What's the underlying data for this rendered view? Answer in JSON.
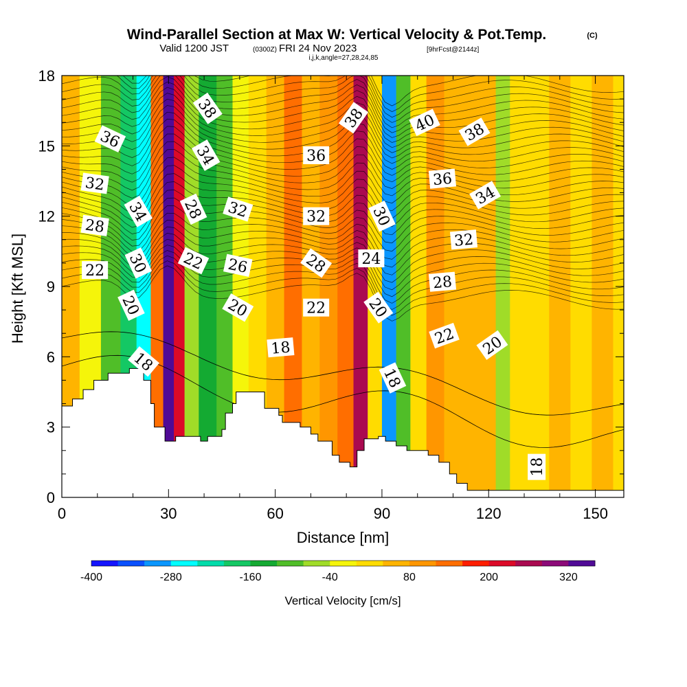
{
  "title": {
    "main": "Wind-Parallel Section at Max W: Vertical Velocity & Pot.Temp.",
    "copyright": "(C)",
    "valid_prefix": "Valid 1200 JST",
    "valid_utc": "(0300Z)",
    "valid_date": "FRI 24 Nov 2023",
    "forecast": "[9hrFcst@2144z]",
    "indices": "i,j,k,angle=27,28,24,85"
  },
  "chart_data": {
    "type": "heatmap",
    "xlabel": "Distance [nm]",
    "ylabel": "Height [Kft MSL]",
    "xlim": [
      0,
      158
    ],
    "ylim": [
      0,
      18
    ],
    "x_ticks": [
      "0",
      "30",
      "60",
      "90",
      "120",
      "150"
    ],
    "y_ticks": [
      "0",
      "3",
      "6",
      "9",
      "12",
      "15",
      "18"
    ],
    "colorbar": {
      "title": "Vertical Velocity [cm/s]",
      "tick_labels": [
        "-400",
        "-280",
        "-160",
        "-40",
        "80",
        "200",
        "320"
      ],
      "levels": [
        -400,
        -360,
        -320,
        -280,
        -240,
        -200,
        -160,
        -120,
        -80,
        -40,
        0,
        40,
        80,
        120,
        160,
        200,
        240,
        280,
        320,
        360
      ],
      "colors": [
        "#1414ff",
        "#0a50ff",
        "#0a96ff",
        "#00ffff",
        "#00dcaa",
        "#14c864",
        "#14aa32",
        "#50be28",
        "#a0dc28",
        "#f5f50a",
        "#ffdc00",
        "#ffb400",
        "#ff9600",
        "#ff6e00",
        "#ff1e00",
        "#dc0a28",
        "#aa0a50",
        "#8c0a78",
        "#500a96"
      ]
    },
    "velocity_columns": [
      {
        "x": 2,
        "w": 50
      },
      {
        "x": 8,
        "w": -40
      },
      {
        "x": 14,
        "w": -90
      },
      {
        "x": 19,
        "w": -200
      },
      {
        "x": 23,
        "w": -270
      },
      {
        "x": 27,
        "w": 120
      },
      {
        "x": 30,
        "w": 340
      },
      {
        "x": 33,
        "w": 200
      },
      {
        "x": 36,
        "w": -80
      },
      {
        "x": 41,
        "w": -140
      },
      {
        "x": 46,
        "w": -90
      },
      {
        "x": 50,
        "w": -40
      },
      {
        "x": 55,
        "w": 20
      },
      {
        "x": 60,
        "w": 60
      },
      {
        "x": 65,
        "w": 120
      },
      {
        "x": 70,
        "w": 40
      },
      {
        "x": 75,
        "w": 90
      },
      {
        "x": 80,
        "w": 150
      },
      {
        "x": 84,
        "w": 240
      },
      {
        "x": 88,
        "w": 30
      },
      {
        "x": 92,
        "w": -310
      },
      {
        "x": 96,
        "w": -120
      },
      {
        "x": 100,
        "w": 30
      },
      {
        "x": 105,
        "w": 80
      },
      {
        "x": 110,
        "w": 60
      },
      {
        "x": 115,
        "w": 40
      },
      {
        "x": 120,
        "w": 60
      },
      {
        "x": 124,
        "w": -60
      },
      {
        "x": 128,
        "w": 30
      },
      {
        "x": 134,
        "w": 20
      },
      {
        "x": 140,
        "w": 50
      },
      {
        "x": 146,
        "w": 30
      },
      {
        "x": 152,
        "w": 60
      },
      {
        "x": 158,
        "w": 20
      }
    ],
    "terrain": [
      {
        "x": 0,
        "h": 3.9
      },
      {
        "x": 3,
        "h": 4.2
      },
      {
        "x": 6,
        "h": 4.6
      },
      {
        "x": 9,
        "h": 5.0
      },
      {
        "x": 13,
        "h": 5.3
      },
      {
        "x": 19,
        "h": 5.5
      },
      {
        "x": 23,
        "h": 5.0
      },
      {
        "x": 25,
        "h": 4.0
      },
      {
        "x": 26,
        "h": 3.0
      },
      {
        "x": 29,
        "h": 2.4
      },
      {
        "x": 32,
        "h": 2.6
      },
      {
        "x": 35,
        "h": 2.6
      },
      {
        "x": 39,
        "h": 2.4
      },
      {
        "x": 41,
        "h": 2.6
      },
      {
        "x": 44,
        "h": 2.6
      },
      {
        "x": 45,
        "h": 2.9
      },
      {
        "x": 46,
        "h": 3.6
      },
      {
        "x": 48,
        "h": 4.0
      },
      {
        "x": 49,
        "h": 4.5
      },
      {
        "x": 55,
        "h": 4.5
      },
      {
        "x": 57,
        "h": 3.8
      },
      {
        "x": 61,
        "h": 3.5
      },
      {
        "x": 62,
        "h": 3.2
      },
      {
        "x": 67,
        "h": 3.0
      },
      {
        "x": 70,
        "h": 2.7
      },
      {
        "x": 72,
        "h": 2.4
      },
      {
        "x": 76,
        "h": 1.8
      },
      {
        "x": 78,
        "h": 1.5
      },
      {
        "x": 81,
        "h": 1.3
      },
      {
        "x": 83,
        "h": 2.0
      },
      {
        "x": 85,
        "h": 2.5
      },
      {
        "x": 89,
        "h": 2.6
      },
      {
        "x": 91,
        "h": 2.4
      },
      {
        "x": 94,
        "h": 2.2
      },
      {
        "x": 97,
        "h": 2.0
      },
      {
        "x": 103,
        "h": 1.8
      },
      {
        "x": 106,
        "h": 1.5
      },
      {
        "x": 109,
        "h": 1.0
      },
      {
        "x": 111,
        "h": 0.6
      },
      {
        "x": 114,
        "h": 0.3
      },
      {
        "x": 158,
        "h": 0.3
      }
    ],
    "contour_labels": [
      {
        "text": "36",
        "x": 13.6,
        "y": 15.3,
        "rot": 25
      },
      {
        "text": "32",
        "x": 9.3,
        "y": 13.4,
        "rot": 8
      },
      {
        "text": "28",
        "x": 9.3,
        "y": 11.6,
        "rot": 8
      },
      {
        "text": "22",
        "x": 9.3,
        "y": 9.7,
        "rot": 0
      },
      {
        "text": "34",
        "x": 21.5,
        "y": 12.2,
        "rot": 60
      },
      {
        "text": "30",
        "x": 21.5,
        "y": 10.0,
        "rot": 65
      },
      {
        "text": "20",
        "x": 19.5,
        "y": 8.2,
        "rot": 65
      },
      {
        "text": "18",
        "x": 23.0,
        "y": 5.8,
        "rot": 40
      },
      {
        "text": "38",
        "x": 41.0,
        "y": 16.6,
        "rot": 55
      },
      {
        "text": "34",
        "x": 40.5,
        "y": 14.6,
        "rot": 60
      },
      {
        "text": "28",
        "x": 37.0,
        "y": 12.3,
        "rot": 65
      },
      {
        "text": "22",
        "x": 37.0,
        "y": 10.1,
        "rot": 25
      },
      {
        "text": "32",
        "x": 49.5,
        "y": 12.3,
        "rot": 18
      },
      {
        "text": "26",
        "x": 49.5,
        "y": 9.9,
        "rot": 12
      },
      {
        "text": "20",
        "x": 49.5,
        "y": 8.1,
        "rot": 30
      },
      {
        "text": "18",
        "x": 61.5,
        "y": 6.4,
        "rot": -5
      },
      {
        "text": "36",
        "x": 71.5,
        "y": 14.6,
        "rot": 0
      },
      {
        "text": "32",
        "x": 71.5,
        "y": 12.0,
        "rot": 0
      },
      {
        "text": "28",
        "x": 71.5,
        "y": 10.0,
        "rot": 35
      },
      {
        "text": "22",
        "x": 71.5,
        "y": 8.1,
        "rot": 0
      },
      {
        "text": "38",
        "x": 82.0,
        "y": 16.2,
        "rot": -55
      },
      {
        "text": "24",
        "x": 87.0,
        "y": 10.2,
        "rot": 0
      },
      {
        "text": "30",
        "x": 90.0,
        "y": 12.0,
        "rot": 65
      },
      {
        "text": "20",
        "x": 89.0,
        "y": 8.1,
        "rot": 55
      },
      {
        "text": "18",
        "x": 93.0,
        "y": 5.1,
        "rot": 65
      },
      {
        "text": "40",
        "x": 102.0,
        "y": 16.0,
        "rot": -25
      },
      {
        "text": "38",
        "x": 116.0,
        "y": 15.6,
        "rot": -30
      },
      {
        "text": "36",
        "x": 107.0,
        "y": 13.6,
        "rot": -5
      },
      {
        "text": "34",
        "x": 119.0,
        "y": 12.9,
        "rot": -30
      },
      {
        "text": "32",
        "x": 113.0,
        "y": 11.0,
        "rot": -5
      },
      {
        "text": "28",
        "x": 107.0,
        "y": 9.2,
        "rot": -5
      },
      {
        "text": "22",
        "x": 107.5,
        "y": 6.9,
        "rot": -20
      },
      {
        "text": "20",
        "x": 121.0,
        "y": 6.5,
        "rot": -35
      },
      {
        "text": "18",
        "x": 133.5,
        "y": 1.3,
        "rot": -90
      }
    ]
  }
}
